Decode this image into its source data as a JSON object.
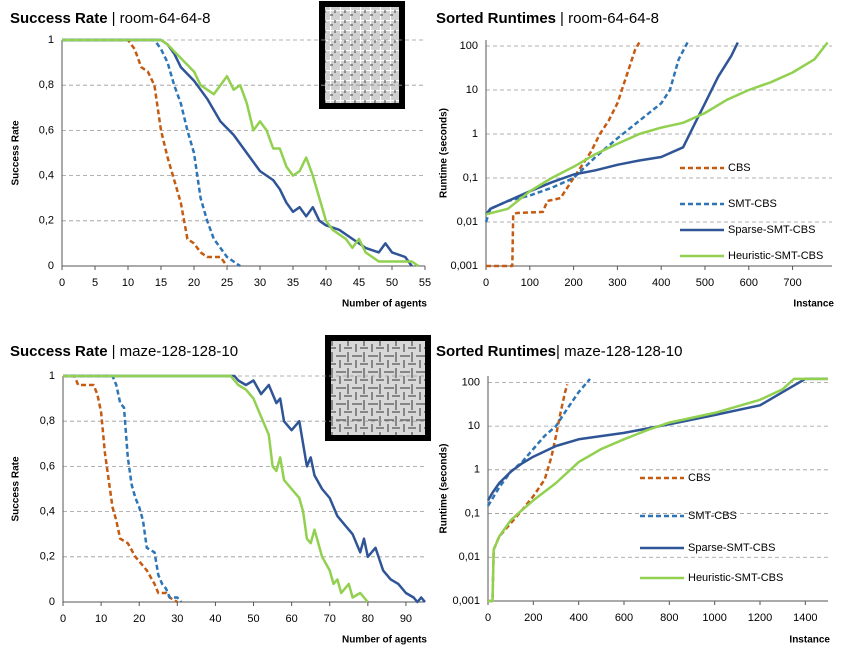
{
  "chart_data": [
    {
      "type": "line",
      "title": "Success Rate",
      "subtitle": "| room-64-64-8",
      "ylabel": "Success Rate",
      "xlabel": "Number of agents",
      "xlim": [
        0,
        55
      ],
      "xticks": [
        0,
        5,
        10,
        15,
        20,
        25,
        30,
        35,
        40,
        45,
        50,
        55
      ],
      "ylim": [
        0,
        1
      ],
      "yticks": [
        0,
        {
          "value": 0.2,
          "label": "0,2"
        },
        {
          "value": 0.4,
          "label": "0,4"
        },
        {
          "value": 0.6,
          "label": "0,6"
        },
        {
          "value": 0.8,
          "label": "0,8"
        },
        1
      ],
      "grid": true,
      "series": [
        {
          "name": "CBS",
          "color": "#c55a11",
          "style": "dashed",
          "x": [
            0,
            10,
            11,
            12,
            13,
            14,
            15,
            16,
            17,
            18,
            19,
            20,
            21,
            22,
            24,
            25
          ],
          "values": [
            1,
            1,
            0.96,
            0.88,
            0.86,
            0.8,
            0.6,
            0.48,
            0.38,
            0.28,
            0.12,
            0.1,
            0.06,
            0.04,
            0.04,
            0
          ]
        },
        {
          "name": "SMT-CBS",
          "color": "#2e75b6",
          "style": "dashed",
          "x": [
            0,
            14,
            15,
            16,
            17,
            18,
            19,
            20,
            21,
            22,
            23,
            24,
            25,
            26,
            27
          ],
          "values": [
            1,
            1,
            0.96,
            0.9,
            0.8,
            0.72,
            0.6,
            0.5,
            0.3,
            0.2,
            0.12,
            0.08,
            0.04,
            0.02,
            0
          ]
        },
        {
          "name": "Sparse-SMT-CBS",
          "color": "#2f5597",
          "style": "solid",
          "x": [
            0,
            15,
            16,
            17,
            18,
            20,
            22,
            24,
            26,
            28,
            30,
            32,
            33,
            34,
            35,
            36,
            37,
            38,
            39,
            40,
            42,
            44,
            46,
            48,
            49,
            50,
            52,
            53
          ],
          "values": [
            1,
            1,
            0.98,
            0.94,
            0.88,
            0.82,
            0.74,
            0.64,
            0.58,
            0.5,
            0.42,
            0.38,
            0.34,
            0.28,
            0.24,
            0.26,
            0.22,
            0.26,
            0.2,
            0.18,
            0.16,
            0.12,
            0.08,
            0.06,
            0.1,
            0.06,
            0.04,
            0
          ]
        },
        {
          "name": "Heuristic-SMT-CBS",
          "color": "#92d050",
          "style": "solid",
          "x": [
            0,
            15,
            16,
            18,
            20,
            21,
            22,
            23,
            24,
            25,
            26,
            27,
            28,
            29,
            30,
            31,
            32,
            33,
            34,
            35,
            36,
            37,
            38,
            39,
            40,
            41,
            43,
            44,
            45,
            46,
            48,
            53,
            54
          ],
          "values": [
            1,
            1,
            0.98,
            0.92,
            0.86,
            0.8,
            0.78,
            0.76,
            0.8,
            0.84,
            0.78,
            0.8,
            0.72,
            0.6,
            0.64,
            0.6,
            0.52,
            0.52,
            0.44,
            0.4,
            0.42,
            0.48,
            0.4,
            0.3,
            0.2,
            0.16,
            0.12,
            0.08,
            0.12,
            0.06,
            0.02,
            0.02,
            0
          ]
        }
      ]
    },
    {
      "type": "line",
      "title": "Sorted Runtimes",
      "subtitle": "| room-64-64-8",
      "ylabel": "Runtime (seconds)",
      "xlabel": "Instance",
      "log_y": true,
      "legend": "right",
      "xlim": [
        0,
        790
      ],
      "xticks": [
        0,
        100,
        200,
        300,
        400,
        500,
        600,
        700
      ],
      "ylim": [
        0.001,
        137
      ],
      "yticks": [
        {
          "value": 0.001,
          "label": "0,001"
        },
        {
          "value": 0.01,
          "label": "0,01"
        },
        {
          "value": 0.1,
          "label": "0,1"
        },
        1,
        10,
        100
      ],
      "grid": true,
      "series": [
        {
          "name": "CBS",
          "color": "#c55a11",
          "style": "dashed",
          "x": [
            0,
            60,
            62,
            70,
            130,
            140,
            170,
            200,
            220,
            240,
            260,
            280,
            300,
            320,
            340,
            350
          ],
          "values": [
            0.001,
            0.001,
            0.015,
            0.016,
            0.017,
            0.03,
            0.035,
            0.1,
            0.2,
            0.4,
            1,
            2,
            5,
            20,
            80,
            120
          ]
        },
        {
          "name": "SMT-CBS",
          "color": "#2e75b6",
          "style": "dashed",
          "x": [
            0,
            10,
            50,
            100,
            150,
            200,
            250,
            300,
            350,
            400,
            420,
            440,
            460
          ],
          "values": [
            0.01,
            0.02,
            0.03,
            0.04,
            0.06,
            0.1,
            0.3,
            0.8,
            2,
            5,
            10,
            50,
            120
          ]
        },
        {
          "name": "Sparse-SMT-CBS",
          "color": "#2f5597",
          "style": "solid",
          "x": [
            0,
            10,
            50,
            100,
            150,
            200,
            250,
            300,
            350,
            400,
            450,
            480,
            500,
            530,
            560,
            575
          ],
          "values": [
            0.015,
            0.02,
            0.03,
            0.05,
            0.08,
            0.12,
            0.15,
            0.2,
            0.25,
            0.3,
            0.5,
            2,
            5,
            20,
            60,
            120
          ]
        },
        {
          "name": "Heuristic-SMT-CBS",
          "color": "#92d050",
          "style": "solid",
          "x": [
            0,
            50,
            100,
            150,
            200,
            250,
            300,
            350,
            400,
            450,
            500,
            550,
            600,
            650,
            700,
            750,
            780
          ],
          "values": [
            0.015,
            0.02,
            0.05,
            0.1,
            0.18,
            0.35,
            0.6,
            1,
            1.4,
            1.8,
            3,
            6,
            10,
            15,
            25,
            50,
            120
          ]
        }
      ]
    },
    {
      "type": "line",
      "title": "Success Rate",
      "subtitle": "| maze-128-128-10",
      "ylabel": "Success Rate",
      "xlabel": "Number of agents",
      "xlim": [
        0,
        95
      ],
      "xticks": [
        0,
        10,
        20,
        30,
        40,
        50,
        60,
        70,
        80,
        90
      ],
      "ylim": [
        0,
        1
      ],
      "yticks": [
        0,
        {
          "value": 0.2,
          "label": "0,2"
        },
        {
          "value": 0.4,
          "label": "0,4"
        },
        {
          "value": 0.6,
          "label": "0,6"
        },
        {
          "value": 0.8,
          "label": "0,8"
        },
        1
      ],
      "grid": true,
      "series": [
        {
          "name": "CBS",
          "color": "#c55a11",
          "style": "dashed",
          "x": [
            0,
            3,
            4,
            8,
            9,
            10,
            11,
            12,
            13,
            14,
            15,
            17,
            19,
            21,
            22,
            24,
            25,
            27,
            28,
            30
          ],
          "values": [
            1,
            1,
            0.96,
            0.96,
            0.92,
            0.84,
            0.66,
            0.54,
            0.42,
            0.36,
            0.28,
            0.26,
            0.2,
            0.16,
            0.14,
            0.08,
            0.04,
            0.04,
            0.02,
            0
          ]
        },
        {
          "name": "SMT-CBS",
          "color": "#2e75b6",
          "style": "dashed",
          "x": [
            0,
            13,
            14,
            15,
            16,
            17,
            18,
            19,
            20,
            21,
            22,
            24,
            25,
            26,
            27,
            28,
            30,
            31
          ],
          "values": [
            1,
            1,
            0.96,
            0.88,
            0.86,
            0.64,
            0.52,
            0.46,
            0.42,
            0.36,
            0.24,
            0.22,
            0.12,
            0.08,
            0.06,
            0.02,
            0.02,
            0
          ]
        },
        {
          "name": "Sparse-SMT-CBS",
          "color": "#2f5597",
          "style": "solid",
          "x": [
            0,
            45,
            46,
            48,
            50,
            52,
            54,
            56,
            57,
            58,
            60,
            62,
            63,
            64,
            65,
            66,
            68,
            70,
            72,
            74,
            76,
            78,
            79,
            80,
            82,
            84,
            86,
            88,
            90,
            92,
            93,
            94,
            95
          ],
          "values": [
            1,
            1,
            0.98,
            0.96,
            0.98,
            0.92,
            0.96,
            0.88,
            0.9,
            0.8,
            0.76,
            0.8,
            0.7,
            0.6,
            0.64,
            0.56,
            0.5,
            0.46,
            0.38,
            0.34,
            0.3,
            0.22,
            0.28,
            0.2,
            0.24,
            0.14,
            0.1,
            0.08,
            0.04,
            0.02,
            0,
            0.02,
            0
          ]
        },
        {
          "name": "Heuristic-SMT-CBS",
          "color": "#92d050",
          "style": "solid",
          "x": [
            0,
            44,
            46,
            48,
            50,
            52,
            54,
            55,
            56,
            57,
            58,
            60,
            62,
            63,
            64,
            65,
            66,
            68,
            70,
            71,
            72,
            73,
            75,
            76,
            78,
            80
          ],
          "values": [
            1,
            1,
            0.96,
            0.94,
            0.9,
            0.82,
            0.74,
            0.6,
            0.58,
            0.64,
            0.54,
            0.5,
            0.46,
            0.4,
            0.28,
            0.26,
            0.32,
            0.2,
            0.14,
            0.08,
            0.1,
            0.04,
            0.08,
            0.02,
            0.04,
            0
          ]
        }
      ]
    },
    {
      "type": "line",
      "title": "Sorted Runtimes",
      "subtitle": "| maze-128-128-10",
      "ylabel": "Runtime (seconds)",
      "xlabel": "Instance",
      "log_y": true,
      "legend": "right",
      "xlim": [
        0,
        1500
      ],
      "xticks": [
        0,
        200,
        400,
        600,
        800,
        1000,
        1200,
        1400
      ],
      "ylim": [
        0.001,
        140
      ],
      "yticks": [
        {
          "value": 0.001,
          "label": "0,001"
        },
        {
          "value": 0.01,
          "label": "0,01"
        },
        {
          "value": 0.1,
          "label": "0,1"
        },
        1,
        10,
        100
      ],
      "grid": true,
      "series": [
        {
          "name": "CBS",
          "color": "#c55a11",
          "style": "dashed",
          "x": [
            0,
            20,
            25,
            50,
            100,
            150,
            200,
            250,
            280,
            300,
            320,
            340,
            350
          ],
          "values": [
            0.001,
            0.001,
            0.015,
            0.03,
            0.06,
            0.12,
            0.25,
            0.6,
            2,
            6,
            20,
            60,
            90
          ]
        },
        {
          "name": "SMT-CBS",
          "color": "#2e75b6",
          "style": "dashed",
          "x": [
            0,
            50,
            100,
            150,
            200,
            250,
            300,
            350,
            400,
            450
          ],
          "values": [
            0.15,
            0.4,
            0.9,
            1.5,
            3,
            6,
            10,
            25,
            60,
            120
          ]
        },
        {
          "name": "Sparse-SMT-CBS",
          "color": "#2f5597",
          "style": "solid",
          "x": [
            0,
            20,
            50,
            100,
            150,
            200,
            300,
            400,
            600,
            800,
            1000,
            1200,
            1300,
            1400,
            1500
          ],
          "values": [
            0.2,
            0.3,
            0.5,
            0.9,
            1.4,
            2,
            3.5,
            5,
            7,
            11,
            18,
            30,
            60,
            120,
            120
          ]
        },
        {
          "name": "Heuristic-SMT-CBS",
          "color": "#92d050",
          "style": "solid",
          "x": [
            0,
            20,
            25,
            50,
            100,
            150,
            200,
            300,
            400,
            500,
            600,
            700,
            800,
            1000,
            1200,
            1300,
            1350,
            1500
          ],
          "values": [
            0.001,
            0.001,
            0.015,
            0.03,
            0.07,
            0.12,
            0.2,
            0.5,
            1.5,
            3,
            5,
            8,
            12,
            20,
            40,
            70,
            120,
            120
          ]
        }
      ]
    }
  ]
}
